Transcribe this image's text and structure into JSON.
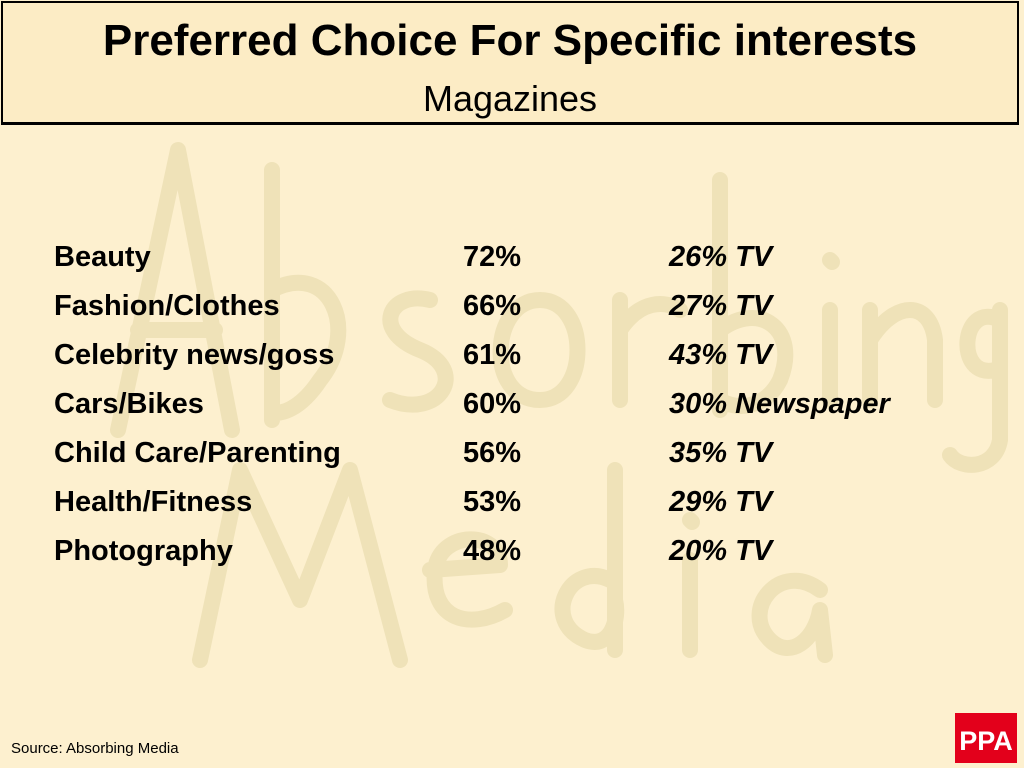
{
  "header": {
    "title": "Preferred Choice For Specific interests",
    "subtitle": "Magazines"
  },
  "watermark": {
    "line1": "Absorbing",
    "line2": "Media"
  },
  "rows": [
    {
      "interest": "Beauty",
      "magazines_pct": "72%",
      "alternative": "26% TV"
    },
    {
      "interest": "Fashion/Clothes",
      "magazines_pct": "66%",
      "alternative": "27% TV"
    },
    {
      "interest": "Celebrity news/goss",
      "magazines_pct": "61%",
      "alternative": "43% TV"
    },
    {
      "interest": "Cars/Bikes",
      "magazines_pct": "60%",
      "alternative": "30% Newspaper"
    },
    {
      "interest": "Child Care/Parenting",
      "magazines_pct": "56%",
      "alternative": "35% TV"
    },
    {
      "interest": "Health/Fitness",
      "magazines_pct": "53%",
      "alternative": "29% TV"
    },
    {
      "interest": "Photography",
      "magazines_pct": "48%",
      "alternative": "20% TV"
    }
  ],
  "footer": {
    "source": "Source: Absorbing Media",
    "logo_text": "PPA"
  },
  "colors": {
    "background": "#fdf0cf",
    "header_background": "#fcecc5",
    "watermark": "#efe2b8",
    "logo_red": "#e3001b"
  }
}
